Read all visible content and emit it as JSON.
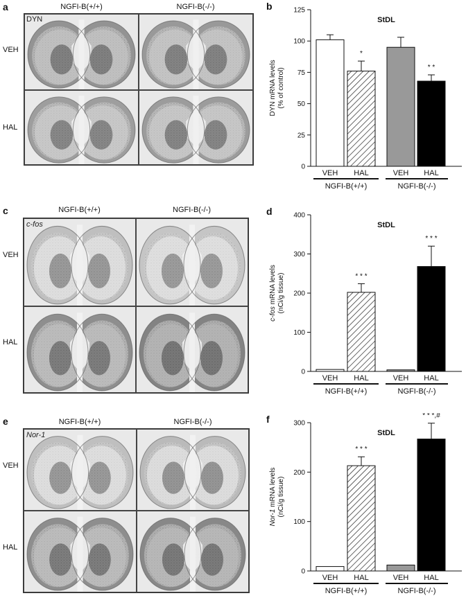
{
  "panels": {
    "a": {
      "label": "a",
      "col1": "NGFI-B(+/+)",
      "col2": "NGFI-B(-/-)",
      "row1": "VEH",
      "row2": "HAL",
      "marker": "DYN"
    },
    "c": {
      "label": "c",
      "col1": "NGFI-B(+/+)",
      "col2": "NGFI-B(-/-)",
      "row1": "VEH",
      "row2": "HAL",
      "marker": "c-fos"
    },
    "e": {
      "label": "e",
      "col1": "NGFI-B(+/+)",
      "col2": "NGFI-B(-/-)",
      "row1": "VEH",
      "row2": "HAL",
      "marker": "Nor-1"
    }
  },
  "chart_data": [
    {
      "panel": "b",
      "type": "bar",
      "title": "StDL",
      "ylabel_lines": [
        "DYN mRNA levels",
        "(% of control)"
      ],
      "ylim": [
        0,
        125
      ],
      "yticks": [
        0,
        25,
        50,
        75,
        100,
        125
      ],
      "categories": [
        "VEH",
        "HAL",
        "VEH",
        "HAL"
      ],
      "groups": [
        "NGFI-B(+/+)",
        "NGFI-B(-/-)"
      ],
      "values": [
        101,
        76,
        95,
        68
      ],
      "errors": [
        4,
        8,
        8,
        5
      ],
      "significance": [
        "",
        "*",
        "",
        "* *"
      ],
      "fills": [
        "white",
        "hatch",
        "#999999",
        "#000000"
      ]
    },
    {
      "panel": "d",
      "type": "bar",
      "title": "StDL",
      "ylabel_lines": [
        "c-fos mRNA levels",
        "(nCi/g tissue)"
      ],
      "ylim": [
        0,
        400
      ],
      "yticks": [
        0,
        100,
        200,
        300,
        400
      ],
      "categories": [
        "VEH",
        "HAL",
        "VEH",
        "HAL"
      ],
      "groups": [
        "NGFI-B(+/+)",
        "NGFI-B(-/-)"
      ],
      "values": [
        5,
        202,
        4,
        268
      ],
      "errors": [
        0,
        22,
        0,
        52
      ],
      "significance": [
        "",
        "* * *",
        "",
        "* * *"
      ],
      "fills": [
        "white",
        "hatch",
        "#999999",
        "#000000"
      ]
    },
    {
      "panel": "f",
      "type": "bar",
      "title": "StDL",
      "ylabel_lines": [
        "Nor-1 mRNA levels",
        "(nCi/g tissue)"
      ],
      "ylim": [
        0,
        300
      ],
      "yticks": [
        0,
        100,
        200,
        300
      ],
      "categories": [
        "VEH",
        "HAL",
        "VEH",
        "HAL"
      ],
      "groups": [
        "NGFI-B(+/+)",
        "NGFI-B(-/-)"
      ],
      "values": [
        9,
        213,
        12,
        267
      ],
      "errors": [
        0,
        18,
        0,
        32
      ],
      "significance": [
        "",
        "* * *",
        "",
        "* * *,#"
      ],
      "fills": [
        "white",
        "hatch",
        "#999999",
        "#000000"
      ]
    }
  ]
}
